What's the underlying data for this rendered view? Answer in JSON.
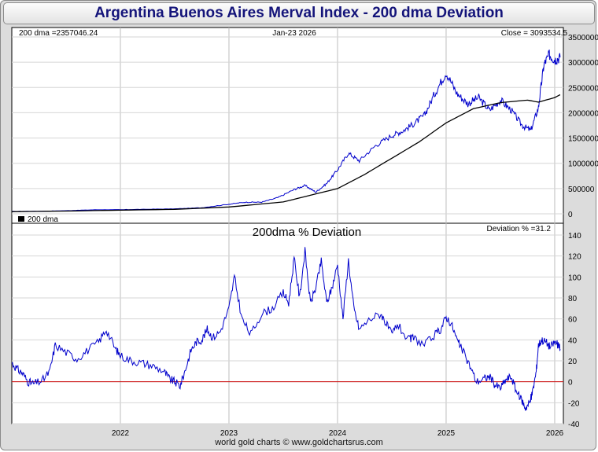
{
  "page": {
    "footer": "world gold charts © www.goldchartsrus.com"
  },
  "chart_data": [
    {
      "type": "line",
      "title": "Argentina Buenos Aires Merval Index - 200 dma Deviation",
      "header_left": "200 dma =2357046.24",
      "header_center": "Jan-23  2026",
      "header_right": "Close = 3093534.5",
      "legend_label": "200 dma",
      "legend_position": "bottom-left",
      "x_ticks": [
        {
          "label": "2022",
          "x": 2022.0
        },
        {
          "label": "2023",
          "x": 2023.0
        },
        {
          "label": "2024",
          "x": 2024.0
        },
        {
          "label": "2025",
          "x": 2025.0
        },
        {
          "label": "2026",
          "x": 2026.0
        }
      ],
      "xlim": [
        2021.0,
        2026.08
      ],
      "ylim": [
        0,
        3500000
      ],
      "y_ticks": [
        0,
        500000,
        1000000,
        1500000,
        2000000,
        2500000,
        3000000,
        3500000
      ],
      "series": [
        {
          "name": "Merval Index",
          "color": "#0000cc",
          "points": [
            [
              2021.0,
              47000
            ],
            [
              2021.25,
              50000
            ],
            [
              2021.5,
              62000
            ],
            [
              2021.75,
              80000
            ],
            [
              2022.0,
              82000
            ],
            [
              2022.25,
              90000
            ],
            [
              2022.5,
              98000
            ],
            [
              2022.75,
              120000
            ],
            [
              2023.0,
              190000
            ],
            [
              2023.15,
              230000
            ],
            [
              2023.3,
              230000
            ],
            [
              2023.45,
              320000
            ],
            [
              2023.6,
              480000
            ],
            [
              2023.7,
              560000
            ],
            [
              2023.8,
              430000
            ],
            [
              2023.9,
              600000
            ],
            [
              2024.0,
              870000
            ],
            [
              2024.1,
              1200000
            ],
            [
              2024.2,
              1050000
            ],
            [
              2024.35,
              1350000
            ],
            [
              2024.5,
              1550000
            ],
            [
              2024.6,
              1640000
            ],
            [
              2024.7,
              1780000
            ],
            [
              2024.8,
              1950000
            ],
            [
              2024.9,
              2400000
            ],
            [
              2025.0,
              2800000
            ],
            [
              2025.1,
              2380000
            ],
            [
              2025.2,
              2180000
            ],
            [
              2025.3,
              2300000
            ],
            [
              2025.4,
              2050000
            ],
            [
              2025.5,
              2250000
            ],
            [
              2025.6,
              2050000
            ],
            [
              2025.7,
              1750000
            ],
            [
              2025.78,
              1650000
            ],
            [
              2025.85,
              2100000
            ],
            [
              2025.9,
              2950000
            ],
            [
              2025.95,
              3150000
            ],
            [
              2026.0,
              3050000
            ],
            [
              2026.05,
              3093534
            ]
          ]
        },
        {
          "name": "200 dma",
          "color": "#000000",
          "points": [
            [
              2021.0,
              42000
            ],
            [
              2021.5,
              55000
            ],
            [
              2022.0,
              72000
            ],
            [
              2022.5,
              88000
            ],
            [
              2023.0,
              135000
            ],
            [
              2023.5,
              235000
            ],
            [
              2024.0,
              500000
            ],
            [
              2024.25,
              780000
            ],
            [
              2024.5,
              1100000
            ],
            [
              2024.75,
              1420000
            ],
            [
              2025.0,
              1800000
            ],
            [
              2025.25,
              2080000
            ],
            [
              2025.5,
              2200000
            ],
            [
              2025.75,
              2250000
            ],
            [
              2025.85,
              2210000
            ],
            [
              2026.0,
              2300000
            ],
            [
              2026.05,
              2357046
            ]
          ]
        }
      ]
    },
    {
      "type": "line",
      "title": "200dma  %  Deviation",
      "header_right": "Deviation % =31.2",
      "xlim": [
        2021.0,
        2026.08
      ],
      "ylim": [
        -40,
        140
      ],
      "y_ticks": [
        -40,
        -20,
        0,
        20,
        40,
        60,
        80,
        100,
        120,
        140
      ],
      "reference_line": {
        "y": 0,
        "color": "#cc0000"
      },
      "series": [
        {
          "name": "Deviation %",
          "color": "#0000cc",
          "points": [
            [
              2021.0,
              18
            ],
            [
              2021.05,
              12
            ],
            [
              2021.1,
              8
            ],
            [
              2021.15,
              0
            ],
            [
              2021.2,
              -2
            ],
            [
              2021.28,
              1
            ],
            [
              2021.35,
              10
            ],
            [
              2021.4,
              35
            ],
            [
              2021.5,
              28
            ],
            [
              2021.6,
              22
            ],
            [
              2021.7,
              30
            ],
            [
              2021.8,
              38
            ],
            [
              2021.87,
              50
            ],
            [
              2021.95,
              32
            ],
            [
              2022.0,
              25
            ],
            [
              2022.1,
              20
            ],
            [
              2022.2,
              18
            ],
            [
              2022.3,
              15
            ],
            [
              2022.4,
              10
            ],
            [
              2022.45,
              3
            ],
            [
              2022.5,
              0
            ],
            [
              2022.55,
              -4
            ],
            [
              2022.6,
              12
            ],
            [
              2022.65,
              30
            ],
            [
              2022.7,
              38
            ],
            [
              2022.75,
              40
            ],
            [
              2022.8,
              50
            ],
            [
              2022.85,
              42
            ],
            [
              2022.92,
              48
            ],
            [
              2023.0,
              70
            ],
            [
              2023.05,
              100
            ],
            [
              2023.12,
              60
            ],
            [
              2023.2,
              45
            ],
            [
              2023.3,
              65
            ],
            [
              2023.4,
              70
            ],
            [
              2023.5,
              85
            ],
            [
              2023.55,
              75
            ],
            [
              2023.6,
              118
            ],
            [
              2023.65,
              80
            ],
            [
              2023.7,
              125
            ],
            [
              2023.75,
              75
            ],
            [
              2023.8,
              90
            ],
            [
              2023.85,
              115
            ],
            [
              2023.9,
              75
            ],
            [
              2023.95,
              90
            ],
            [
              2024.0,
              112
            ],
            [
              2024.05,
              60
            ],
            [
              2024.1,
              116
            ],
            [
              2024.15,
              70
            ],
            [
              2024.2,
              50
            ],
            [
              2024.3,
              60
            ],
            [
              2024.4,
              65
            ],
            [
              2024.45,
              55
            ],
            [
              2024.5,
              45
            ],
            [
              2024.55,
              55
            ],
            [
              2024.65,
              40
            ],
            [
              2024.7,
              42
            ],
            [
              2024.8,
              35
            ],
            [
              2024.9,
              45
            ],
            [
              2024.95,
              50
            ],
            [
              2025.0,
              62
            ],
            [
              2025.05,
              55
            ],
            [
              2025.1,
              40
            ],
            [
              2025.15,
              30
            ],
            [
              2025.22,
              15
            ],
            [
              2025.28,
              0
            ],
            [
              2025.35,
              3
            ],
            [
              2025.4,
              5
            ],
            [
              2025.45,
              -3
            ],
            [
              2025.5,
              -6
            ],
            [
              2025.55,
              2
            ],
            [
              2025.6,
              5
            ],
            [
              2025.65,
              -10
            ],
            [
              2025.7,
              -18
            ],
            [
              2025.73,
              -25
            ],
            [
              2025.77,
              -20
            ],
            [
              2025.8,
              -8
            ],
            [
              2025.83,
              10
            ],
            [
              2025.85,
              35
            ],
            [
              2025.88,
              40
            ],
            [
              2025.92,
              38
            ],
            [
              2025.96,
              33
            ],
            [
              2026.0,
              38
            ],
            [
              2026.03,
              35
            ],
            [
              2026.05,
              31.2
            ]
          ]
        }
      ]
    }
  ]
}
